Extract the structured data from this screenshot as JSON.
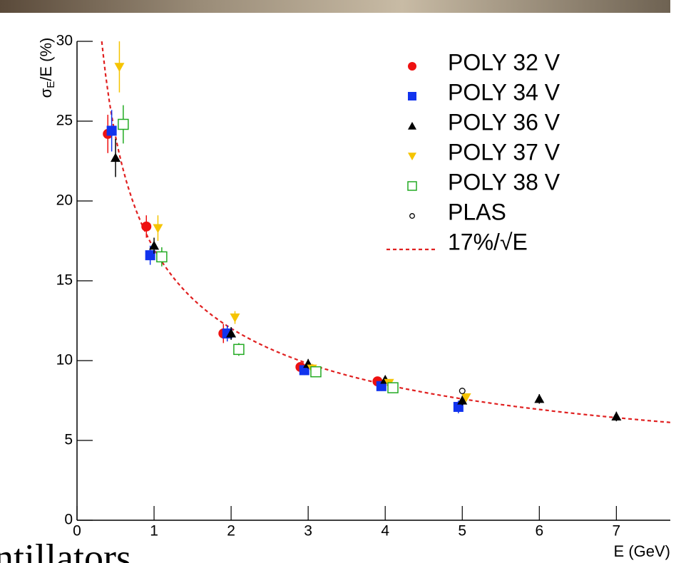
{
  "slide_text": "ntillators",
  "chart_data": {
    "type": "scatter",
    "xlabel": "E (GeV)",
    "ylabel": {
      "symbol": "σ",
      "subscript": "E",
      "rest": "/E (%)"
    },
    "xlim": [
      0,
      7.7
    ],
    "ylim": [
      0,
      30
    ],
    "xticks": [
      0,
      1,
      2,
      3,
      4,
      5,
      6,
      7
    ],
    "yticks": [
      0,
      5,
      10,
      15,
      20,
      25,
      30
    ],
    "legend": "upper right",
    "series": [
      {
        "name": "POLY 32 V",
        "color": "#ee1111",
        "marker": "circle",
        "x": [
          0.4,
          0.9,
          1.9,
          2.9,
          3.9
        ],
        "values": [
          24.2,
          18.4,
          11.7,
          9.6,
          8.7
        ],
        "errors": [
          1.2,
          0.7,
          0.6,
          0.3,
          0.2
        ]
      },
      {
        "name": "POLY 34 V",
        "color": "#1133ee",
        "marker": "square",
        "x": [
          0.45,
          0.95,
          1.95,
          2.95,
          3.95,
          4.95
        ],
        "values": [
          24.4,
          16.6,
          11.7,
          9.4,
          8.4,
          7.1
        ],
        "errors": [
          1.3,
          0.6,
          0.5,
          0.3,
          0.3,
          0.4
        ]
      },
      {
        "name": "POLY 36 V",
        "color": "#000000",
        "marker": "triangle-up",
        "x": [
          0.5,
          1.0,
          2.0,
          3.0,
          4.0,
          5.0,
          6.0,
          7.0
        ],
        "values": [
          22.7,
          17.2,
          11.7,
          9.8,
          8.8,
          7.5,
          7.6,
          6.5
        ],
        "errors": [
          1.2,
          0.5,
          0.4,
          0.3,
          0.2,
          0.3,
          0.3,
          0.3
        ]
      },
      {
        "name": "POLY 37 V",
        "color": "#f5c400",
        "marker": "triangle-down",
        "x": [
          0.55,
          1.05,
          2.05,
          3.05,
          4.05,
          5.05
        ],
        "values": [
          28.4,
          18.3,
          12.7,
          9.5,
          8.6,
          7.7
        ],
        "errors": [
          1.6,
          0.8,
          0.4,
          0.3,
          0.2,
          0.2
        ]
      },
      {
        "name": "POLY 38 V",
        "color": "#22aa22",
        "marker": "open-square",
        "x": [
          0.6,
          1.1,
          2.1,
          3.1,
          4.1
        ],
        "values": [
          24.8,
          16.5,
          10.7,
          9.3,
          8.3
        ],
        "errors": [
          1.2,
          0.6,
          0.4,
          0.3,
          0.2
        ]
      },
      {
        "name": "PLAS",
        "color": "#000000",
        "marker": "open-circle",
        "x": [
          5.0
        ],
        "values": [
          8.1
        ]
      }
    ],
    "fit": {
      "name": "17%/√E",
      "coefficient": 17,
      "color": "#e02020"
    }
  }
}
